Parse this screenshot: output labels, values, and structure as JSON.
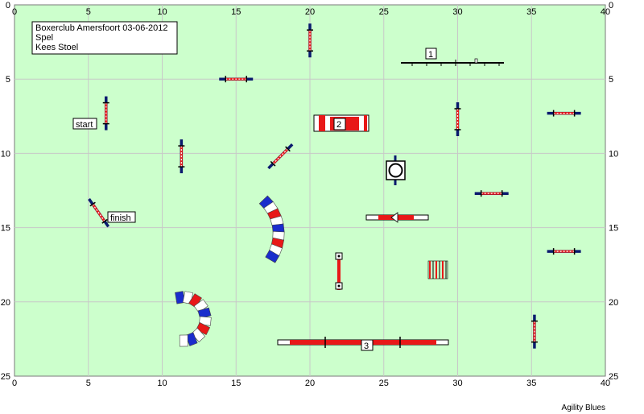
{
  "diagram": {
    "type": "agility-course-map",
    "field_width_m": 40,
    "field_height_m": 25,
    "axis_ticks_x": [
      0,
      5,
      10,
      15,
      20,
      25,
      30,
      35,
      40
    ],
    "axis_ticks_y": [
      0,
      5,
      10,
      15,
      20,
      25
    ],
    "colors": {
      "field": "#ccffcc",
      "grid": "#c8c8c8",
      "pole_red": "#e81818",
      "pole_blue": "#1a2ccc",
      "wing_dark": "#0a1a6e"
    },
    "info_box": {
      "line1": "Boxerclub Amersfoort 03-06-2012",
      "line2": "Spel",
      "line3": "Kees Stoel"
    },
    "labels": {
      "start": "start",
      "finish": "finish"
    },
    "numbered_obstacles": [
      {
        "number": "1",
        "kind": "dogwalk-plank",
        "x": 29.8,
        "y": 2.2
      },
      {
        "number": "2",
        "kind": "tunnel-box",
        "x": 21.8,
        "y": 7.7
      },
      {
        "number": "3",
        "kind": "dogwalk",
        "x": 23.5,
        "y": 22.2
      }
    ],
    "jumps": [
      {
        "id": "jump-start",
        "x": 6.2,
        "y": 7.3,
        "angle": 90
      },
      {
        "id": "jump-a",
        "x": 20.0,
        "y": 2.4,
        "angle": 90
      },
      {
        "id": "jump-b",
        "x": 15.0,
        "y": 5.0,
        "angle": 0
      },
      {
        "id": "jump-c",
        "x": 11.3,
        "y": 10.2,
        "angle": 90
      },
      {
        "id": "jump-d",
        "x": 18.0,
        "y": 10.2,
        "angle": -45
      },
      {
        "id": "jump-e",
        "x": 30.0,
        "y": 7.7,
        "angle": 90
      },
      {
        "id": "jump-f",
        "x": 37.2,
        "y": 7.3,
        "angle": 0
      },
      {
        "id": "jump-g",
        "x": 32.3,
        "y": 12.7,
        "angle": 0
      },
      {
        "id": "jump-h",
        "x": 37.2,
        "y": 16.6,
        "angle": 0
      },
      {
        "id": "jump-i",
        "x": 35.2,
        "y": 22.0,
        "angle": 90
      },
      {
        "id": "jump-finish",
        "x": 5.7,
        "y": 14.0,
        "angle": 55
      }
    ],
    "tire": {
      "x": 26.0,
      "y": 10.5
    },
    "seesaw": {
      "x": 25.0,
      "y": 13.7
    },
    "weave": {
      "x": 29.3,
      "y": 17.3
    },
    "post_table": {
      "x": 22.0,
      "y": 17.3
    },
    "tunnels": [
      {
        "id": "tunnel-mid",
        "kind": "curved"
      },
      {
        "id": "tunnel-low",
        "kind": "curved"
      }
    ],
    "credit": "Agility Blues"
  }
}
